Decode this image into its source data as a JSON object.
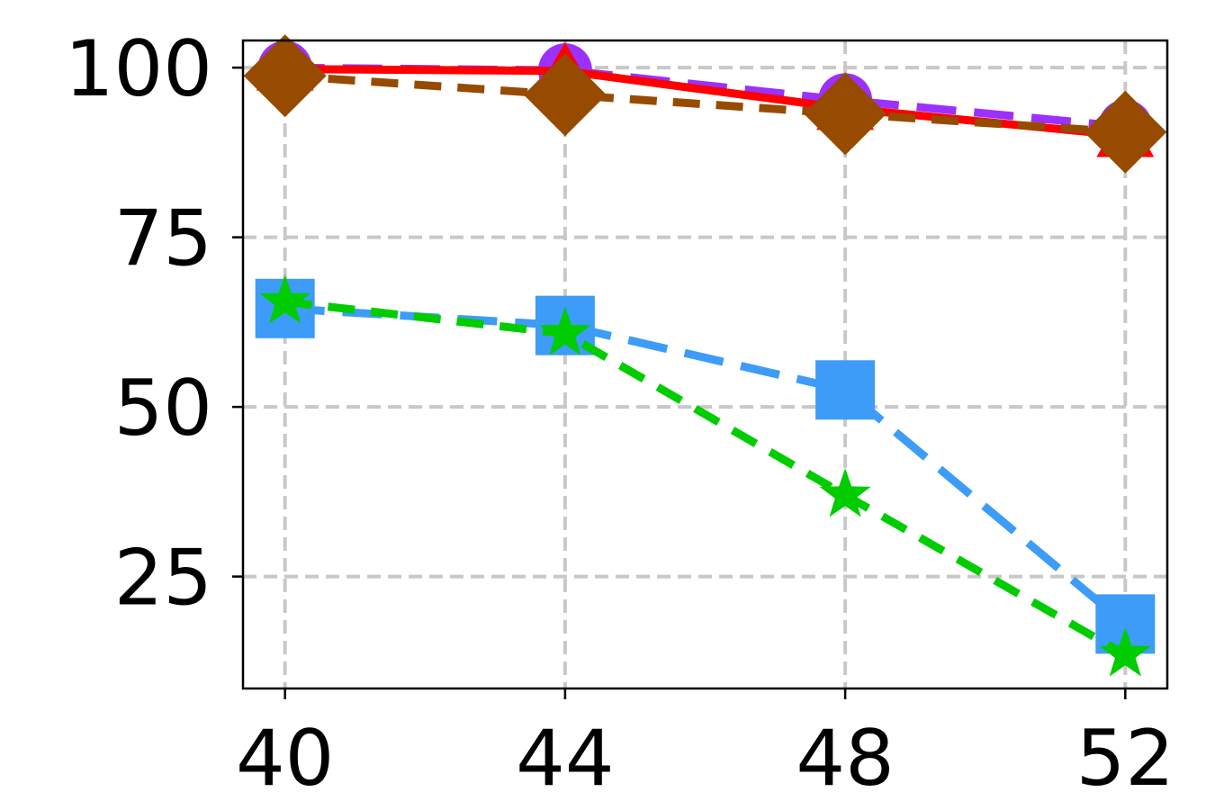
{
  "chart_data": {
    "type": "line",
    "title": "",
    "xlabel": "",
    "ylabel": "",
    "x": [
      40,
      44,
      48,
      52
    ],
    "xticks": [
      "40",
      "44",
      "48",
      "52"
    ],
    "yticks": [
      "25",
      "50",
      "75",
      "100"
    ],
    "xlim": [
      39.4,
      52.6
    ],
    "ylim": [
      8.5,
      104
    ],
    "grid": true,
    "series": [
      {
        "values": [
          100,
          99.6,
          95.2,
          91.3
        ],
        "color": "#9b30ff",
        "line": "long-dash",
        "marker": "circle"
      },
      {
        "values": [
          99.8,
          99.5,
          94.0,
          90.0
        ],
        "color": "#ff0000",
        "line": "solid",
        "marker": "triangle"
      },
      {
        "values": [
          64.5,
          62.0,
          52.5,
          18.0
        ],
        "color": "#3c9cf8",
        "line": "long-dash",
        "marker": "square"
      },
      {
        "values": [
          65.5,
          60.8,
          37.0,
          13.5
        ],
        "color": "#00cc00",
        "line": "dashed",
        "marker": "star"
      },
      {
        "values": [
          98.8,
          96.0,
          93.2,
          90.5
        ],
        "color": "#964b00",
        "line": "dashed",
        "marker": "diamond"
      }
    ]
  }
}
